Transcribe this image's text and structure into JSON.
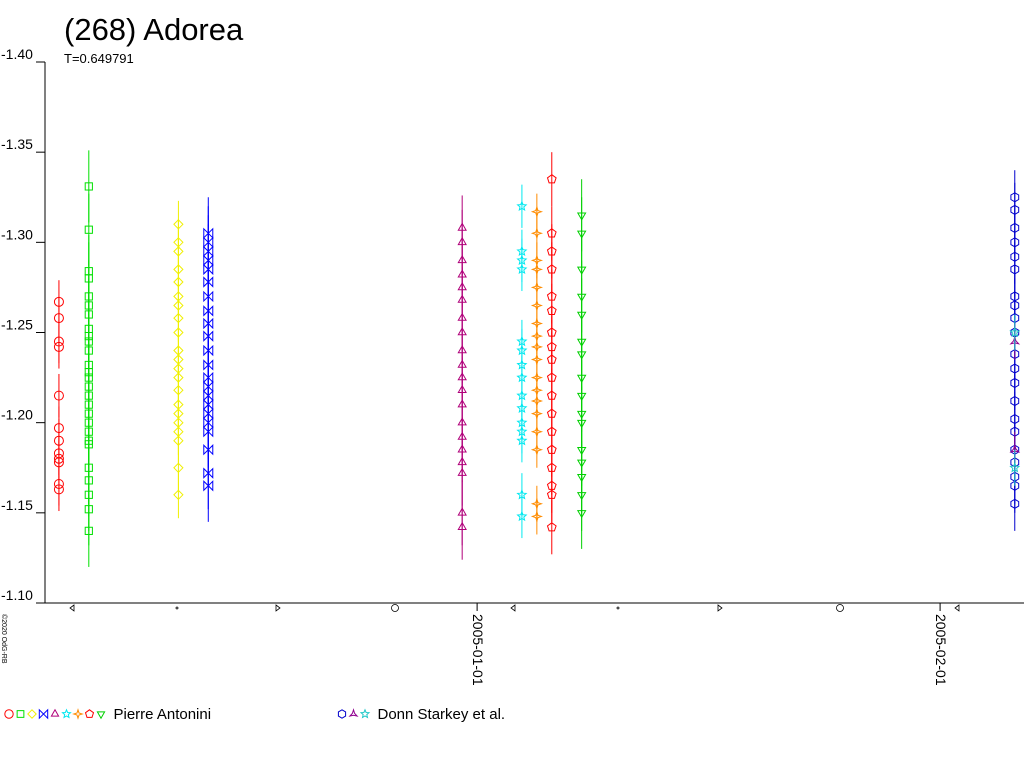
{
  "chart_data": {
    "type": "scatter",
    "title": "(268) Adorea",
    "subtitle": "T=0.649791",
    "credit": "©2020 OdG-RB",
    "ylim": [
      -1.4,
      -1.1
    ],
    "yticks": [
      {
        "value": -1.4,
        "label": "-1.40"
      },
      -1.35,
      {
        "value": -1.3,
        "label": "-1.30"
      },
      -1.25,
      {
        "value": -1.2,
        "label": "-1.20"
      },
      -1.15,
      {
        "value": -1.1,
        "label": "-1.10"
      }
    ],
    "xlim": [
      "2004-12-03",
      "2005-02-07"
    ],
    "xticks": [
      "2005-01-01",
      "2005-02-01"
    ],
    "observers": [
      {
        "name": "Pierre Antonini",
        "sessions": [
          {
            "date": "2004-12-04",
            "color": "#ff0000",
            "marker": "circle",
            "error": 0.012,
            "values": [
              -1.267,
              -1.258,
              -1.245,
              -1.242,
              -1.215,
              -1.197,
              -1.19,
              -1.183,
              -1.18,
              -1.178,
              -1.166,
              -1.163
            ]
          },
          {
            "date": "2004-12-06",
            "color": "#00e000",
            "marker": "square",
            "error": 0.02,
            "values": [
              -1.331,
              -1.307,
              -1.284,
              -1.28,
              -1.27,
              -1.265,
              -1.26,
              -1.252,
              -1.248,
              -1.245,
              -1.24,
              -1.232,
              -1.228,
              -1.225,
              -1.22,
              -1.215,
              -1.21,
              -1.205,
              -1.2,
              -1.195,
              -1.19,
              -1.188,
              -1.175,
              -1.168,
              -1.16,
              -1.152,
              -1.14
            ]
          },
          {
            "date": "2004-12-12",
            "color": "#f0f000",
            "marker": "diamond",
            "error": 0.013,
            "values": [
              -1.31,
              -1.3,
              -1.295,
              -1.285,
              -1.278,
              -1.27,
              -1.265,
              -1.258,
              -1.25,
              -1.24,
              -1.235,
              -1.23,
              -1.225,
              -1.218,
              -1.21,
              -1.205,
              -1.2,
              -1.195,
              -1.19,
              -1.175,
              -1.16
            ]
          },
          {
            "date": "2004-12-14",
            "color": "#0000ff",
            "marker": "bowtie",
            "error": 0.02,
            "values": [
              -1.305,
              -1.3,
              -1.295,
              -1.29,
              -1.285,
              -1.278,
              -1.27,
              -1.262,
              -1.255,
              -1.248,
              -1.24,
              -1.232,
              -1.225,
              -1.22,
              -1.215,
              -1.21,
              -1.205,
              -1.2,
              -1.195,
              -1.185,
              -1.172,
              -1.165
            ]
          },
          {
            "date": "2004-12-31",
            "color": "#b0007a",
            "marker": "triangle",
            "error": 0.018,
            "values": [
              -1.308,
              -1.3,
              -1.29,
              -1.282,
              -1.275,
              -1.268,
              -1.258,
              -1.25,
              -1.24,
              -1.232,
              -1.225,
              -1.218,
              -1.21,
              -1.2,
              -1.192,
              -1.185,
              -1.178,
              -1.172,
              -1.15,
              -1.142
            ]
          },
          {
            "date": "2005-01-04",
            "color": "#00e8f0",
            "marker": "star",
            "error": 0.012,
            "values": [
              -1.32,
              -1.295,
              -1.29,
              -1.285,
              -1.245,
              -1.24,
              -1.232,
              -1.225,
              -1.215,
              -1.208,
              -1.2,
              -1.195,
              -1.19,
              -1.16,
              -1.148
            ]
          },
          {
            "date": "2005-01-05",
            "color": "#ff8c00",
            "marker": "star4",
            "error": 0.01,
            "values": [
              -1.317,
              -1.305,
              -1.29,
              -1.285,
              -1.275,
              -1.265,
              -1.255,
              -1.248,
              -1.242,
              -1.235,
              -1.225,
              -1.218,
              -1.212,
              -1.205,
              -1.195,
              -1.185,
              -1.155,
              -1.148
            ]
          },
          {
            "date": "2005-01-06",
            "color": "#ff0000",
            "marker": "pentagon",
            "error": 0.015,
            "values": [
              -1.335,
              -1.305,
              -1.295,
              -1.285,
              -1.27,
              -1.262,
              -1.25,
              -1.242,
              -1.235,
              -1.225,
              -1.215,
              -1.205,
              -1.195,
              -1.185,
              -1.175,
              -1.165,
              -1.16,
              -1.142
            ]
          },
          {
            "date": "2005-01-08",
            "color": "#00d000",
            "marker": "triangle-down",
            "error": 0.02,
            "values": [
              -1.315,
              -1.305,
              -1.285,
              -1.27,
              -1.26,
              -1.245,
              -1.238,
              -1.225,
              -1.215,
              -1.205,
              -1.2,
              -1.185,
              -1.178,
              -1.17,
              -1.16,
              -1.15
            ]
          }
        ]
      },
      {
        "name": "Donn Starkey et al.",
        "sessions": [
          {
            "date": "2005-02-06",
            "color": "#0000cc",
            "marker": "hexagon",
            "error": 0.015,
            "values": [
              -1.325,
              -1.318,
              -1.308,
              -1.3,
              -1.292,
              -1.285,
              -1.27,
              -1.265,
              -1.258,
              -1.25,
              -1.238,
              -1.23,
              -1.222,
              -1.212,
              -1.202,
              -1.195,
              -1.185,
              -1.178,
              -1.17,
              -1.165,
              -1.155
            ]
          },
          {
            "date": "2005-02-06",
            "color": "#900090",
            "marker": "trefoil",
            "error": 0.01,
            "values": [
              -1.245,
              -1.185
            ]
          },
          {
            "date": "2005-02-06",
            "color": "#20c8c8",
            "marker": "star",
            "error": 0.01,
            "values": [
              -1.25,
              -1.175
            ]
          }
        ]
      }
    ]
  }
}
